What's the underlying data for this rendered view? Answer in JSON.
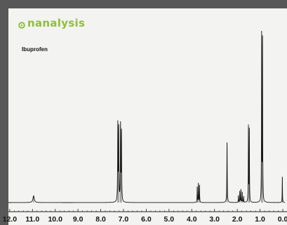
{
  "brand": {
    "name": "nanalysis",
    "color": "#8fbf3a"
  },
  "chart_data": {
    "type": "line",
    "title": "Ibuprofen",
    "xlabel": "",
    "ylabel": "",
    "x_reversed": true,
    "xlim": [
      12.4,
      -0.1
    ],
    "x_ticks": [
      12.0,
      11.0,
      10.0,
      9.0,
      8.0,
      7.0,
      6.0,
      5.0,
      4.0,
      3.0,
      2.0,
      1.0,
      0.0
    ],
    "x_tick_labels": [
      "12.0",
      "11.0",
      "10.0",
      "9.0",
      "8.0",
      "7.0",
      "6.0",
      "5.0",
      "4.0",
      "3.0",
      "2.0",
      "1.0",
      "0.0"
    ],
    "ylim": [
      0,
      1.0
    ],
    "grid": false,
    "line_color": "#1a1a1a",
    "peaks": [
      {
        "ppm": 10.95,
        "height": 0.04,
        "width": 0.07
      },
      {
        "ppm": 7.25,
        "height": 0.45,
        "width": 0.02
      },
      {
        "ppm": 7.21,
        "height": 0.42,
        "width": 0.02
      },
      {
        "ppm": 7.13,
        "height": 0.44,
        "width": 0.02
      },
      {
        "ppm": 7.09,
        "height": 0.4,
        "width": 0.02
      },
      {
        "ppm": 3.76,
        "height": 0.09,
        "width": 0.015
      },
      {
        "ppm": 3.71,
        "height": 0.11,
        "width": 0.015
      },
      {
        "ppm": 3.66,
        "height": 0.1,
        "width": 0.015
      },
      {
        "ppm": 2.45,
        "height": 0.35,
        "width": 0.02
      },
      {
        "ppm": 1.95,
        "height": 0.04,
        "width": 0.015
      },
      {
        "ppm": 1.89,
        "height": 0.065,
        "width": 0.015
      },
      {
        "ppm": 1.84,
        "height": 0.075,
        "width": 0.015
      },
      {
        "ppm": 1.78,
        "height": 0.06,
        "width": 0.015
      },
      {
        "ppm": 1.72,
        "height": 0.035,
        "width": 0.015
      },
      {
        "ppm": 1.51,
        "height": 0.44,
        "width": 0.015
      },
      {
        "ppm": 1.47,
        "height": 0.42,
        "width": 0.015
      },
      {
        "ppm": 0.93,
        "height": 0.98,
        "width": 0.015
      },
      {
        "ppm": 0.89,
        "height": 0.94,
        "width": 0.015
      },
      {
        "ppm": 0.02,
        "height": 0.15,
        "width": 0.015
      }
    ]
  }
}
